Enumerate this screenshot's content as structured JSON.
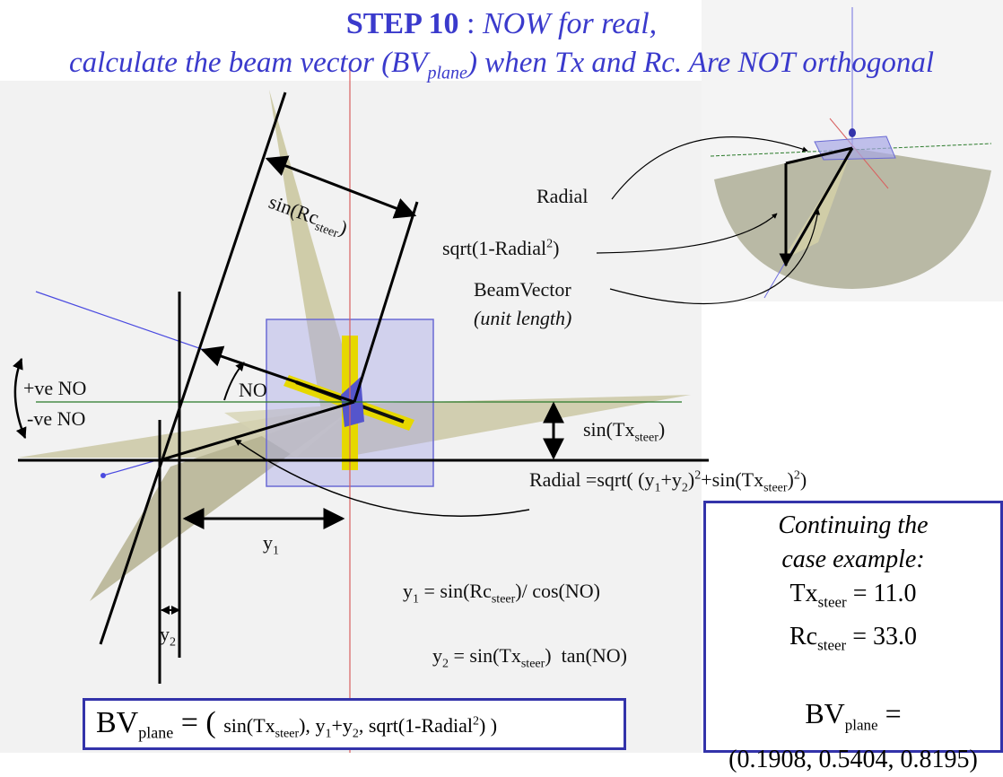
{
  "title": {
    "step": "STEP 10",
    "colon": " : ",
    "line1_rest": "NOW for real,",
    "line2_a": "calculate the beam vector (BV",
    "line2_sub": "plane",
    "line2_b": ") when Tx and Rc. Are NOT orthogonal"
  },
  "labels": {
    "sin_rc": "sin(Rc",
    "sin_rc_sub": "steer",
    "sin_rc_close": ")",
    "no_angle": "NO",
    "pos_no": "+ve NO",
    "neg_no": "-ve NO",
    "sin_tx": "sin(Tx",
    "sin_tx_sub": "steer",
    "sin_tx_close": ")",
    "radial_eq_a": "Radial =sqrt( (y",
    "radial_eq_s1": "1",
    "radial_eq_b": "+y",
    "radial_eq_s2": "2",
    "radial_eq_c": ")",
    "radial_eq_sup1": "2",
    "radial_eq_d": "+sin(Tx",
    "radial_eq_s3": "steer",
    "radial_eq_e": ")",
    "radial_eq_sup2": "2",
    "radial_eq_f": ")",
    "y1": "y",
    "y1_sub": "1",
    "y2": "y",
    "y2_sub": "2"
  },
  "equations": {
    "y1_a": "y",
    "y1_s": "1",
    "y1_b": " = sin(Rc",
    "y1_s2": "steer",
    "y1_c": ")/ cos(NO)",
    "y2_a": "y",
    "y2_s": "2",
    "y2_b": " = sin(Tx",
    "y2_s2": "steer",
    "y2_c": ")  tan(NO)"
  },
  "inset": {
    "radial": "Radial",
    "sqrt_a": "sqrt(1-Radial",
    "sqrt_sup": "2",
    "sqrt_b": ")",
    "beam": "BeamVector",
    "unit": "(unit length)"
  },
  "bv_formula": {
    "bv": "BV",
    "bv_sub": "plane",
    "eq": " = ( ",
    "t1": "sin(Tx",
    "t1_sub": "steer",
    "t1_close": "),",
    "t2a": " y",
    "t2s1": "1",
    "t2b": "+y",
    "t2s2": "2",
    "t2c": ", sqrt(1-Radial",
    "t2sup": "2",
    "t2d": ") )"
  },
  "case_example": {
    "line1": "Continuing the",
    "line2": "case example:",
    "tx_label": "Tx",
    "tx_sub": "steer",
    "tx_value": " = 11.0",
    "rc_label": "Rc",
    "rc_sub": "steer",
    "rc_value": " = 33.0",
    "bv_label": "BV",
    "bv_sub": "plane",
    "bv_eq": " =",
    "bv_vector": "(0.1908, 0.5404, 0.8195)"
  },
  "colors": {
    "title": "#3a3acc",
    "box_border": "#3333aa",
    "fan": "#b8b48a",
    "steer_plate": "#9999dd",
    "element_bar": "#e6d800"
  }
}
